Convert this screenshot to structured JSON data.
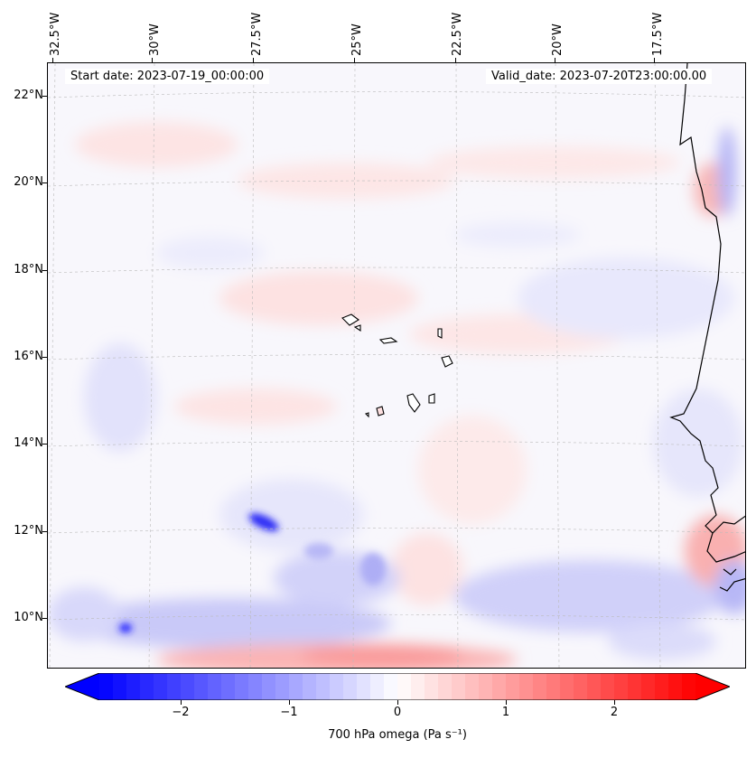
{
  "map": {
    "start_date": "Start date: 2023-07-19_00:00:00",
    "valid_date": "Valid_date: 2023-07-20T23:00:00.00",
    "lon_labels": [
      "32.5°W",
      "30°W",
      "27.5°W",
      "25°W",
      "22.5°W",
      "20°W",
      "17.5°W"
    ],
    "lat_labels": [
      "22°N",
      "20°N",
      "18°N",
      "16°N",
      "14°N",
      "12°N",
      "10°N"
    ]
  },
  "colorbar": {
    "vmin": -2.75,
    "vmax": 2.75,
    "ticks": [
      "−2",
      "−1",
      "0",
      "1",
      "2"
    ],
    "tick_values": [
      -2,
      -1,
      0,
      1,
      2
    ],
    "title": "700 hPa omega (Pa s⁻¹)",
    "color_low": "#0000ff",
    "color_mid": "#ffffff",
    "color_high": "#ff0000"
  }
}
